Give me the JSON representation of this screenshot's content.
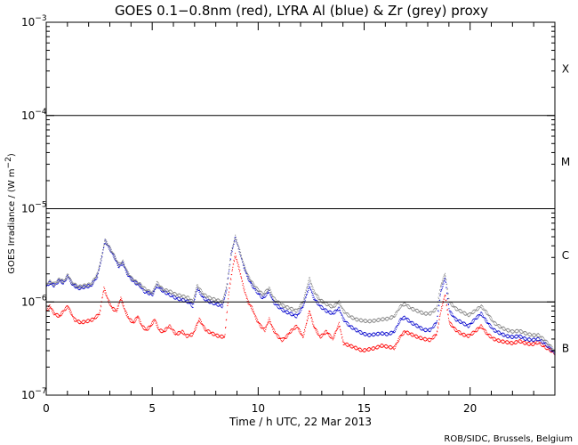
{
  "chart_data": {
    "type": "scatter",
    "title": "GOES 0.1−0.8nm (red), LYRA Al (blue) & Zr (grey) proxy",
    "xlabel": "Time / h UTC, 22 Mar 2013",
    "ylabel": {
      "main": "GOES Irradiance / (W m",
      "exp": "−2",
      "tail": ")"
    },
    "credit": "ROB/SIDC, Brussels, Belgium",
    "xlim": [
      0,
      24
    ],
    "ylim": [
      1e-07,
      0.001
    ],
    "yscale": "log",
    "x_ticks": [
      "0",
      "5",
      "10",
      "15",
      "20"
    ],
    "y_ticks": [
      {
        "base": "10",
        "exp": "−7"
      },
      {
        "base": "10",
        "exp": "−6"
      },
      {
        "base": "10",
        "exp": "−5"
      },
      {
        "base": "10",
        "exp": "−4"
      },
      {
        "base": "10",
        "exp": "−3"
      }
    ],
    "flare_class_lines": [
      1e-06,
      1e-05,
      0.0001
    ],
    "flare_classes": [
      {
        "label": "X",
        "center": 0.000316
      },
      {
        "label": "M",
        "center": 3.16e-05
      },
      {
        "label": "C",
        "center": 3.16e-06
      },
      {
        "label": "B",
        "center": 3.16e-07
      }
    ],
    "series": [
      {
        "name": "GOES 0.1-0.8nm",
        "color": "#ff0000",
        "points": [
          [
            0.0,
            8e-07
          ],
          [
            0.15,
            9e-07
          ],
          [
            0.35,
            7.5e-07
          ],
          [
            0.6,
            7e-07
          ],
          [
            0.8,
            8e-07
          ],
          [
            1.0,
            9e-07
          ],
          [
            1.3,
            6.5e-07
          ],
          [
            1.6,
            6e-07
          ],
          [
            1.9,
            6.2e-07
          ],
          [
            2.2,
            6.5e-07
          ],
          [
            2.5,
            7.5e-07
          ],
          [
            2.7,
            1.4e-06
          ],
          [
            2.9,
            1.05e-06
          ],
          [
            3.1,
            8.5e-07
          ],
          [
            3.3,
            8e-07
          ],
          [
            3.5,
            1.1e-06
          ],
          [
            3.7,
            8e-07
          ],
          [
            3.9,
            6.5e-07
          ],
          [
            4.1,
            6e-07
          ],
          [
            4.3,
            7e-07
          ],
          [
            4.5,
            5.5e-07
          ],
          [
            4.7,
            5e-07
          ],
          [
            4.9,
            5.5e-07
          ],
          [
            5.1,
            6.5e-07
          ],
          [
            5.3,
            5e-07
          ],
          [
            5.5,
            4.8e-07
          ],
          [
            5.8,
            5.5e-07
          ],
          [
            6.1,
            4.5e-07
          ],
          [
            6.4,
            4.8e-07
          ],
          [
            6.6,
            4.3e-07
          ],
          [
            6.9,
            4.5e-07
          ],
          [
            7.2,
            6.5e-07
          ],
          [
            7.5,
            5e-07
          ],
          [
            7.8,
            4.6e-07
          ],
          [
            8.1,
            4.3e-07
          ],
          [
            8.4,
            4.2e-07
          ],
          [
            8.6,
            1.3e-06
          ],
          [
            8.8,
            2.5e-06
          ],
          [
            8.9,
            3.2e-06
          ],
          [
            9.1,
            2.2e-06
          ],
          [
            9.3,
            1.4e-06
          ],
          [
            9.5,
            1e-06
          ],
          [
            9.7,
            8.5e-07
          ],
          [
            9.9,
            6.5e-07
          ],
          [
            10.1,
            5.5e-07
          ],
          [
            10.3,
            5e-07
          ],
          [
            10.5,
            6.5e-07
          ],
          [
            10.7,
            5e-07
          ],
          [
            10.9,
            4.3e-07
          ],
          [
            11.1,
            3.9e-07
          ],
          [
            11.3,
            4.2e-07
          ],
          [
            11.5,
            4.8e-07
          ],
          [
            11.8,
            5.5e-07
          ],
          [
            12.1,
            4.2e-07
          ],
          [
            12.4,
            8e-07
          ],
          [
            12.6,
            5.5e-07
          ],
          [
            12.9,
            4.2e-07
          ],
          [
            13.2,
            4.8e-07
          ],
          [
            13.5,
            4e-07
          ],
          [
            13.8,
            5.8e-07
          ],
          [
            14.0,
            3.6e-07
          ],
          [
            14.3,
            3.4e-07
          ],
          [
            14.6,
            3.2e-07
          ],
          [
            14.9,
            3e-07
          ],
          [
            15.2,
            3.1e-07
          ],
          [
            15.5,
            3.2e-07
          ],
          [
            15.8,
            3.4e-07
          ],
          [
            16.1,
            3.3e-07
          ],
          [
            16.4,
            3.2e-07
          ],
          [
            16.7,
            4.3e-07
          ],
          [
            16.9,
            4.8e-07
          ],
          [
            17.2,
            4.5e-07
          ],
          [
            17.5,
            4.2e-07
          ],
          [
            17.8,
            4e-07
          ],
          [
            18.1,
            3.9e-07
          ],
          [
            18.4,
            4.5e-07
          ],
          [
            18.6,
            8e-07
          ],
          [
            18.8,
            1.2e-06
          ],
          [
            19.0,
            6e-07
          ],
          [
            19.3,
            5e-07
          ],
          [
            19.6,
            4.5e-07
          ],
          [
            19.9,
            4.3e-07
          ],
          [
            20.2,
            4.8e-07
          ],
          [
            20.5,
            5.5e-07
          ],
          [
            20.8,
            4.5e-07
          ],
          [
            21.1,
            4e-07
          ],
          [
            21.4,
            3.8e-07
          ],
          [
            21.7,
            3.7e-07
          ],
          [
            22.0,
            3.6e-07
          ],
          [
            22.3,
            3.8e-07
          ],
          [
            22.6,
            3.6e-07
          ],
          [
            22.9,
            3.5e-07
          ],
          [
            23.2,
            3.7e-07
          ],
          [
            23.5,
            3.3e-07
          ],
          [
            23.8,
            3e-07
          ],
          [
            24.0,
            2.8e-07
          ]
        ]
      },
      {
        "name": "LYRA Al proxy",
        "color": "#0000cc",
        "points": [
          [
            0.0,
            1.5e-06
          ],
          [
            0.15,
            1.6e-06
          ],
          [
            0.35,
            1.5e-06
          ],
          [
            0.6,
            1.7e-06
          ],
          [
            0.8,
            1.6e-06
          ],
          [
            1.0,
            1.9e-06
          ],
          [
            1.2,
            1.55e-06
          ],
          [
            1.5,
            1.4e-06
          ],
          [
            1.8,
            1.45e-06
          ],
          [
            2.1,
            1.5e-06
          ],
          [
            2.4,
            1.9e-06
          ],
          [
            2.6,
            3e-06
          ],
          [
            2.75,
            4.5e-06
          ],
          [
            2.95,
            3.8e-06
          ],
          [
            3.2,
            3e-06
          ],
          [
            3.4,
            2.4e-06
          ],
          [
            3.6,
            2.6e-06
          ],
          [
            3.8,
            2e-06
          ],
          [
            4.0,
            1.75e-06
          ],
          [
            4.2,
            1.6e-06
          ],
          [
            4.4,
            1.5e-06
          ],
          [
            4.6,
            1.3e-06
          ],
          [
            4.8,
            1.25e-06
          ],
          [
            5.0,
            1.2e-06
          ],
          [
            5.2,
            1.5e-06
          ],
          [
            5.5,
            1.3e-06
          ],
          [
            5.8,
            1.2e-06
          ],
          [
            6.1,
            1.1e-06
          ],
          [
            6.4,
            1.05e-06
          ],
          [
            6.7,
            1e-06
          ],
          [
            6.9,
            9e-07
          ],
          [
            7.1,
            1.4e-06
          ],
          [
            7.4,
            1.1e-06
          ],
          [
            7.7,
            1e-06
          ],
          [
            8.0,
            9.5e-07
          ],
          [
            8.3,
            9e-07
          ],
          [
            8.5,
            1.4e-06
          ],
          [
            8.7,
            3.2e-06
          ],
          [
            8.9,
            4.9e-06
          ],
          [
            9.1,
            3.5e-06
          ],
          [
            9.3,
            2.4e-06
          ],
          [
            9.5,
            1.8e-06
          ],
          [
            9.7,
            1.5e-06
          ],
          [
            9.9,
            1.3e-06
          ],
          [
            10.2,
            1.1e-06
          ],
          [
            10.5,
            1.3e-06
          ],
          [
            10.7,
            1e-06
          ],
          [
            10.9,
            9e-07
          ],
          [
            11.2,
            8e-07
          ],
          [
            11.5,
            7.5e-07
          ],
          [
            11.8,
            7e-07
          ],
          [
            12.1,
            9e-07
          ],
          [
            12.4,
            1.5e-06
          ],
          [
            12.6,
            1.1e-06
          ],
          [
            12.9,
            9e-07
          ],
          [
            13.2,
            8e-07
          ],
          [
            13.5,
            7.5e-07
          ],
          [
            13.8,
            8.5e-07
          ],
          [
            14.0,
            6.5e-07
          ],
          [
            14.3,
            5.5e-07
          ],
          [
            14.6,
            5e-07
          ],
          [
            14.9,
            4.6e-07
          ],
          [
            15.2,
            4.4e-07
          ],
          [
            15.5,
            4.5e-07
          ],
          [
            15.8,
            4.6e-07
          ],
          [
            16.1,
            4.5e-07
          ],
          [
            16.4,
            4.8e-07
          ],
          [
            16.7,
            6.5e-07
          ],
          [
            16.9,
            6.8e-07
          ],
          [
            17.2,
            6e-07
          ],
          [
            17.5,
            5.5e-07
          ],
          [
            17.8,
            5e-07
          ],
          [
            18.1,
            5e-07
          ],
          [
            18.4,
            6e-07
          ],
          [
            18.6,
            1.3e-06
          ],
          [
            18.8,
            1.8e-06
          ],
          [
            19.0,
            8e-07
          ],
          [
            19.3,
            6.5e-07
          ],
          [
            19.6,
            6e-07
          ],
          [
            19.9,
            5.5e-07
          ],
          [
            20.2,
            6.5e-07
          ],
          [
            20.5,
            7.5e-07
          ],
          [
            20.8,
            6e-07
          ],
          [
            21.1,
            5e-07
          ],
          [
            21.4,
            4.6e-07
          ],
          [
            21.7,
            4.3e-07
          ],
          [
            22.0,
            4.2e-07
          ],
          [
            22.3,
            4.3e-07
          ],
          [
            22.6,
            4e-07
          ],
          [
            22.9,
            3.9e-07
          ],
          [
            23.2,
            4e-07
          ],
          [
            23.5,
            3.6e-07
          ],
          [
            23.8,
            3.1e-07
          ],
          [
            24.0,
            2.8e-07
          ]
        ]
      },
      {
        "name": "LYRA Zr proxy",
        "color": "#7f7f7f",
        "points": [
          [
            0.0,
            1.55e-06
          ],
          [
            0.15,
            1.65e-06
          ],
          [
            0.35,
            1.55e-06
          ],
          [
            0.6,
            1.75e-06
          ],
          [
            0.8,
            1.65e-06
          ],
          [
            1.0,
            1.95e-06
          ],
          [
            1.2,
            1.6e-06
          ],
          [
            1.5,
            1.45e-06
          ],
          [
            1.8,
            1.5e-06
          ],
          [
            2.1,
            1.55e-06
          ],
          [
            2.4,
            2e-06
          ],
          [
            2.6,
            3.1e-06
          ],
          [
            2.75,
            4.6e-06
          ],
          [
            2.95,
            3.9e-06
          ],
          [
            3.2,
            3.1e-06
          ],
          [
            3.4,
            2.5e-06
          ],
          [
            3.6,
            2.7e-06
          ],
          [
            3.8,
            2.1e-06
          ],
          [
            4.0,
            1.8e-06
          ],
          [
            4.2,
            1.65e-06
          ],
          [
            4.4,
            1.55e-06
          ],
          [
            4.6,
            1.4e-06
          ],
          [
            4.8,
            1.3e-06
          ],
          [
            5.0,
            1.25e-06
          ],
          [
            5.2,
            1.6e-06
          ],
          [
            5.5,
            1.35e-06
          ],
          [
            5.8,
            1.3e-06
          ],
          [
            6.1,
            1.2e-06
          ],
          [
            6.4,
            1.15e-06
          ],
          [
            6.7,
            1.1e-06
          ],
          [
            6.9,
            1e-06
          ],
          [
            7.1,
            1.5e-06
          ],
          [
            7.4,
            1.2e-06
          ],
          [
            7.7,
            1.1e-06
          ],
          [
            8.0,
            1.05e-06
          ],
          [
            8.3,
            1e-06
          ],
          [
            8.5,
            1.5e-06
          ],
          [
            8.7,
            3.3e-06
          ],
          [
            8.9,
            5e-06
          ],
          [
            9.1,
            3.6e-06
          ],
          [
            9.3,
            2.5e-06
          ],
          [
            9.5,
            1.9e-06
          ],
          [
            9.7,
            1.6e-06
          ],
          [
            9.9,
            1.4e-06
          ],
          [
            10.2,
            1.2e-06
          ],
          [
            10.5,
            1.4e-06
          ],
          [
            10.7,
            1.1e-06
          ],
          [
            10.9,
            1e-06
          ],
          [
            11.2,
            9e-07
          ],
          [
            11.5,
            8.5e-07
          ],
          [
            11.8,
            8e-07
          ],
          [
            12.1,
            1e-06
          ],
          [
            12.4,
            1.8e-06
          ],
          [
            12.6,
            1.3e-06
          ],
          [
            12.9,
            1.05e-06
          ],
          [
            13.2,
            9.5e-07
          ],
          [
            13.5,
            8.8e-07
          ],
          [
            13.8,
            1e-06
          ],
          [
            14.0,
            8e-07
          ],
          [
            14.3,
            7e-07
          ],
          [
            14.6,
            6.5e-07
          ],
          [
            14.9,
            6.3e-07
          ],
          [
            15.2,
            6.2e-07
          ],
          [
            15.5,
            6.3e-07
          ],
          [
            15.8,
            6.5e-07
          ],
          [
            16.1,
            6.6e-07
          ],
          [
            16.4,
            7e-07
          ],
          [
            16.7,
            9e-07
          ],
          [
            16.9,
            9.5e-07
          ],
          [
            17.2,
            8.5e-07
          ],
          [
            17.5,
            8e-07
          ],
          [
            17.8,
            7.5e-07
          ],
          [
            18.1,
            7.5e-07
          ],
          [
            18.4,
            8.5e-07
          ],
          [
            18.6,
            1.5e-06
          ],
          [
            18.8,
            2e-06
          ],
          [
            19.0,
            1e-06
          ],
          [
            19.3,
            8.5e-07
          ],
          [
            19.6,
            7.8e-07
          ],
          [
            19.9,
            7.2e-07
          ],
          [
            20.2,
            8e-07
          ],
          [
            20.5,
            9e-07
          ],
          [
            20.8,
            7.5e-07
          ],
          [
            21.1,
            6e-07
          ],
          [
            21.4,
            5.4e-07
          ],
          [
            21.7,
            5e-07
          ],
          [
            22.0,
            4.8e-07
          ],
          [
            22.3,
            4.9e-07
          ],
          [
            22.6,
            4.6e-07
          ],
          [
            22.9,
            4.4e-07
          ],
          [
            23.2,
            4.4e-07
          ],
          [
            23.5,
            3.9e-07
          ],
          [
            23.8,
            3.3e-07
          ],
          [
            24.0,
            2.9e-07
          ]
        ]
      }
    ],
    "grid": false,
    "legend": "none"
  }
}
